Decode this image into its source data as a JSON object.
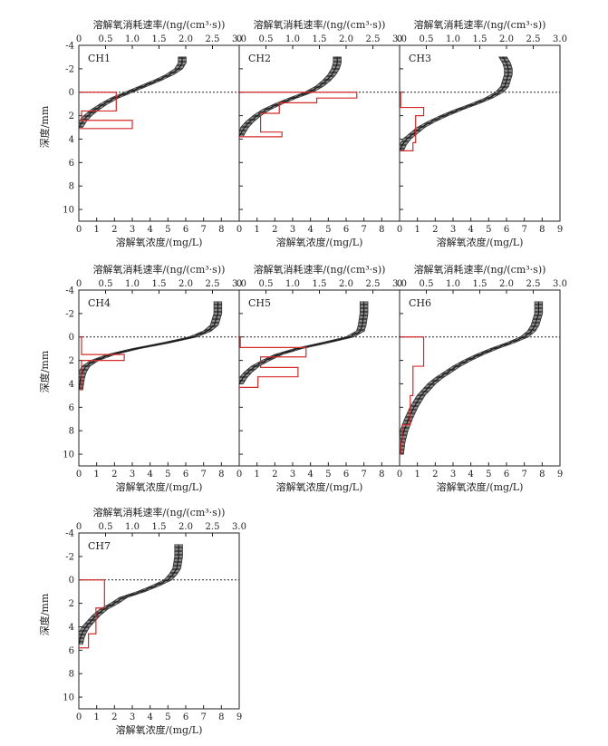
{
  "figure": {
    "top_axis_title": "溶解氧消耗速率/(ng/(cm³·s))",
    "bottom_axis_title": "溶解氧浓度/(mg/L)",
    "left_axis_title": "深度/mm"
  },
  "chart_data": [
    {
      "type": "line",
      "panel": "CH1",
      "ylabel": "深度/mm",
      "xlabel": "溶解氧浓度/(mg/L)",
      "x2label": "溶解氧消耗速率/(ng/(cm³·s))",
      "xlim": [
        0,
        9
      ],
      "x2lim": [
        0,
        3.0
      ],
      "ylim": [
        -4,
        11
      ],
      "xticks": [
        "0",
        "1",
        "2",
        "3",
        "4",
        "5",
        "6",
        "7",
        "8"
      ],
      "x2ticks": [
        "0",
        "0.5",
        "1.0",
        "1.5",
        "2.0",
        "2.5",
        "3.0"
      ],
      "yticks": [
        "-4",
        "-2",
        "0",
        "2",
        "4",
        "6",
        "8",
        "10"
      ],
      "swi_line_depth": 0,
      "concentration_profile": {
        "depth": [
          -3.0,
          -2.5,
          -2.0,
          -1.5,
          -1.0,
          -0.5,
          0.0,
          0.5,
          1.0,
          1.5,
          2.0,
          2.5,
          3.0
        ],
        "concentration": [
          5.8,
          5.8,
          5.6,
          5.1,
          4.4,
          3.6,
          2.8,
          2.0,
          1.4,
          0.9,
          0.5,
          0.2,
          0.0
        ]
      },
      "consumption_rate": {
        "depth_edges": [
          0,
          1.6,
          2.4,
          3.1
        ],
        "rates": [
          0.7,
          0.05,
          1.0
        ]
      }
    },
    {
      "type": "line",
      "panel": "CH2",
      "ylabel": "深度/mm",
      "xlabel": "溶解氧浓度/(mg/L)",
      "x2label": "溶解氧消耗速率/(ng/(cm³·s))",
      "xlim": [
        0,
        9
      ],
      "x2lim": [
        0,
        3.0
      ],
      "ylim": [
        -4,
        11
      ],
      "xticks": [
        "0",
        "1",
        "2",
        "3",
        "4",
        "5",
        "6",
        "7",
        "8"
      ],
      "x2ticks": [
        "0",
        "0.5",
        "1.0",
        "1.5",
        "2.0",
        "2.5",
        "3.0"
      ],
      "yticks": [
        "-4",
        "-2",
        "0",
        "2",
        "4",
        "6",
        "8",
        "10"
      ],
      "swi_line_depth": 0,
      "concentration_profile": {
        "depth": [
          -3.0,
          -2.5,
          -2.0,
          -1.5,
          -1.0,
          -0.5,
          0.0,
          0.5,
          1.0,
          1.5,
          2.0,
          2.5,
          3.0,
          3.5,
          3.8
        ],
        "concentration": [
          5.5,
          5.5,
          5.4,
          5.2,
          4.9,
          4.5,
          3.9,
          3.0,
          2.2,
          1.5,
          1.0,
          0.6,
          0.3,
          0.1,
          0.0
        ]
      },
      "consumption_rate": {
        "depth_edges": [
          0,
          0.5,
          0.9,
          1.8,
          3.4,
          3.8
        ],
        "rates": [
          2.2,
          1.45,
          0.75,
          0.4,
          0.8
        ]
      }
    },
    {
      "type": "line",
      "panel": "CH3",
      "ylabel": "深度/mm",
      "xlabel": "溶解氧浓度/(mg/L)",
      "x2label": "溶解氧消耗速率/(ng/(cm³·s))",
      "xlim": [
        0,
        9
      ],
      "x2lim": [
        0,
        3.0
      ],
      "ylim": [
        -4,
        11
      ],
      "xticks": [
        "0",
        "1",
        "2",
        "3",
        "4",
        "5",
        "6",
        "7",
        "8",
        "9"
      ],
      "x2ticks": [
        "0",
        "0.5",
        "1.0",
        "1.5",
        "2.0",
        "2.5",
        "3.0"
      ],
      "yticks": [
        "-4",
        "-2",
        "0",
        "2",
        "4",
        "6",
        "8",
        "10"
      ],
      "swi_line_depth": 0,
      "concentration_profile": {
        "depth": [
          -3.0,
          -2.5,
          -2.0,
          -1.5,
          -1.0,
          -0.5,
          0.0,
          0.5,
          1.0,
          1.5,
          2.0,
          2.5,
          3.0,
          3.5,
          4.0,
          4.5,
          5.0
        ],
        "concentration": [
          5.8,
          6.0,
          6.1,
          6.1,
          6.0,
          5.9,
          5.6,
          5.0,
          4.2,
          3.3,
          2.5,
          1.8,
          1.2,
          0.8,
          0.4,
          0.15,
          0.0
        ]
      },
      "consumption_rate": {
        "depth_edges": [
          0,
          1.3,
          2.0,
          4.3,
          5.0
        ],
        "rates": [
          0.02,
          0.45,
          0.3,
          0.25
        ]
      }
    },
    {
      "type": "line",
      "panel": "CH4",
      "ylabel": "深度/mm",
      "xlabel": "溶解氧浓度/(mg/L)",
      "x2label": "溶解氧消耗速率/(ng/(cm³·s))",
      "xlim": [
        0,
        9
      ],
      "x2lim": [
        0,
        3.0
      ],
      "ylim": [
        -4,
        11
      ],
      "xticks": [
        "0",
        "1",
        "2",
        "3",
        "4",
        "5",
        "6",
        "7",
        "8"
      ],
      "x2ticks": [
        "0",
        "0.5",
        "1.0",
        "1.5",
        "2.0",
        "2.5",
        "3.0"
      ],
      "yticks": [
        "-4",
        "-2",
        "0",
        "2",
        "4",
        "6",
        "8",
        "10"
      ],
      "swi_line_depth": 0,
      "concentration_profile": {
        "depth": [
          -3.0,
          -2.0,
          -1.0,
          -0.5,
          0.0,
          0.5,
          1.0,
          1.5,
          2.0,
          2.5,
          3.0,
          3.5,
          4.0,
          4.5
        ],
        "concentration": [
          7.8,
          7.8,
          7.6,
          7.2,
          6.4,
          4.9,
          3.2,
          1.8,
          0.9,
          0.4,
          0.2,
          0.1,
          0.05,
          0.0
        ]
      },
      "consumption_rate": {
        "depth_edges": [
          0,
          1.5,
          2.0,
          3.0,
          4.5
        ],
        "rates": [
          0.05,
          0.85,
          0.05,
          0.05
        ]
      }
    },
    {
      "type": "line",
      "panel": "CH5",
      "ylabel": "深度/mm",
      "xlabel": "溶解氧浓度/(mg/L)",
      "x2label": "溶解氧消耗速率/(ng/(cm³·s))",
      "xlim": [
        0,
        9
      ],
      "x2lim": [
        0,
        3.0
      ],
      "ylim": [
        -4,
        11
      ],
      "xticks": [
        "0",
        "1",
        "2",
        "3",
        "4",
        "5",
        "6",
        "7",
        "8"
      ],
      "x2ticks": [
        "0",
        "0.5",
        "1.0",
        "1.5",
        "2.0",
        "2.5",
        "3.0"
      ],
      "yticks": [
        "-4",
        "-2",
        "0",
        "2",
        "4",
        "6",
        "8",
        "10"
      ],
      "swi_line_depth": 0,
      "concentration_profile": {
        "depth": [
          -3.0,
          -2.0,
          -1.0,
          -0.5,
          0.0,
          0.5,
          1.0,
          1.5,
          2.0,
          2.5,
          3.0,
          3.5,
          4.0
        ],
        "concentration": [
          7.0,
          7.0,
          6.9,
          6.8,
          6.2,
          4.8,
          3.3,
          2.2,
          1.5,
          0.9,
          0.5,
          0.2,
          0.0
        ]
      },
      "consumption_rate": {
        "depth_edges": [
          0,
          0.9,
          1.7,
          2.6,
          3.4,
          4.3
        ],
        "rates": [
          0.02,
          1.25,
          0.4,
          1.1,
          0.35
        ]
      }
    },
    {
      "type": "line",
      "panel": "CH6",
      "ylabel": "深度/mm",
      "xlabel": "溶解氧浓度/(mg/L)",
      "x2label": "溶解氧消耗速率/(ng/(cm³·s))",
      "xlim": [
        0,
        9
      ],
      "x2lim": [
        0,
        3.0
      ],
      "ylim": [
        -4,
        11
      ],
      "xticks": [
        "0",
        "1",
        "2",
        "3",
        "4",
        "5",
        "6",
        "7",
        "8",
        "9"
      ],
      "x2ticks": [
        "0",
        "0.5",
        "1.0",
        "1.5",
        "2.0",
        "2.5",
        "3.0"
      ],
      "yticks": [
        "-4",
        "-2",
        "0",
        "2",
        "4",
        "6",
        "8",
        "10"
      ],
      "swi_line_depth": 0,
      "concentration_profile": {
        "depth": [
          -3.0,
          -2.0,
          -1.0,
          -0.5,
          0.0,
          0.5,
          1.0,
          1.5,
          2.0,
          2.5,
          3.0,
          3.5,
          4.0,
          5.0,
          6.0,
          7.0,
          8.0,
          9.0,
          10.0
        ],
        "concentration": [
          7.8,
          7.8,
          7.6,
          7.4,
          7.0,
          6.2,
          5.3,
          4.5,
          3.8,
          3.2,
          2.7,
          2.2,
          1.8,
          1.2,
          0.8,
          0.5,
          0.25,
          0.08,
          0.0
        ]
      },
      "consumption_rate": {
        "depth_edges": [
          0,
          2.5,
          5.0,
          7.5,
          9.0,
          10.0
        ],
        "rates": [
          0.45,
          0.25,
          0.2,
          0.05,
          0.02
        ]
      }
    },
    {
      "type": "line",
      "panel": "CH7",
      "ylabel": "深度/mm",
      "xlabel": "溶解氧浓度/(mg/L)",
      "x2label": "溶解氧消耗速率/(ng/(cm³·s))",
      "xlim": [
        0,
        9
      ],
      "x2lim": [
        0,
        3.0
      ],
      "ylim": [
        -4,
        11
      ],
      "xticks": [
        "0",
        "1",
        "2",
        "3",
        "4",
        "5",
        "6",
        "7",
        "8",
        "9"
      ],
      "x2ticks": [
        "0",
        "0.5",
        "1.0",
        "1.5",
        "2.0",
        "2.5",
        "3.0"
      ],
      "yticks": [
        "-4",
        "-2",
        "0",
        "2",
        "4",
        "6",
        "8",
        "10"
      ],
      "swi_line_depth": 0,
      "concentration_profile": {
        "depth": [
          -3.0,
          -2.0,
          -1.0,
          -0.5,
          0.0,
          0.5,
          1.0,
          1.5,
          2.0,
          2.5,
          3.0,
          3.5,
          4.0,
          4.5,
          5.0,
          5.5
        ],
        "concentration": [
          5.6,
          5.6,
          5.5,
          5.3,
          5.0,
          4.3,
          3.5,
          2.5,
          2.0,
          1.4,
          1.0,
          0.7,
          0.4,
          0.2,
          0.07,
          0.0
        ]
      },
      "consumption_rate": {
        "depth_edges": [
          0,
          2.4,
          4.6,
          5.8
        ],
        "rates": [
          0.48,
          0.32,
          0.18
        ]
      }
    }
  ]
}
